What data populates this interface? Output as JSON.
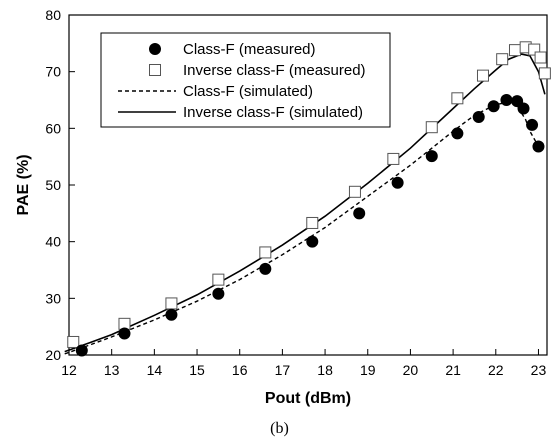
{
  "caption": "(b)",
  "chart_data": {
    "type": "line",
    "xlabel": "Pout (dBm)",
    "ylabel": "PAE (%)",
    "xlim": [
      12,
      23.2
    ],
    "ylim": [
      20,
      80
    ],
    "x_ticks": [
      12,
      13,
      14,
      15,
      16,
      17,
      18,
      19,
      20,
      21,
      22,
      23
    ],
    "y_ticks": [
      20,
      30,
      40,
      50,
      60,
      70,
      80
    ],
    "grid": false,
    "legend_position": "top-left",
    "series": [
      {
        "name": "Class-F (measured)",
        "style": "filled-circle",
        "color": "#000000",
        "x": [
          12.3,
          13.3,
          14.4,
          15.5,
          16.6,
          17.7,
          18.8,
          19.7,
          20.5,
          21.1,
          21.6,
          21.95,
          22.25,
          22.5,
          22.65,
          22.85,
          23.0
        ],
        "y": [
          20.8,
          23.8,
          27.1,
          30.8,
          35.2,
          40.0,
          45.0,
          50.4,
          55.1,
          59.1,
          62.0,
          63.9,
          65.0,
          64.8,
          63.5,
          60.6,
          56.8
        ]
      },
      {
        "name": "Inverse class-F (measured)",
        "style": "open-square",
        "color": "#000000",
        "x": [
          12.1,
          13.3,
          14.4,
          15.5,
          16.6,
          17.7,
          18.7,
          19.6,
          20.5,
          21.1,
          21.7,
          22.15,
          22.45,
          22.7,
          22.9,
          23.05,
          23.15
        ],
        "y": [
          22.3,
          25.5,
          29.1,
          33.3,
          38.1,
          43.3,
          48.8,
          54.6,
          60.2,
          65.3,
          69.3,
          72.2,
          73.8,
          74.3,
          73.9,
          72.5,
          69.7
        ]
      },
      {
        "name": "Class-F (simulated)",
        "style": "dashed-line",
        "color": "#000000",
        "x": [
          11.9,
          12.5,
          13.0,
          14.0,
          15.0,
          16.0,
          17.0,
          18.0,
          19.0,
          20.0,
          20.5,
          21.0,
          21.5,
          22.0,
          22.3,
          22.5,
          22.7,
          22.8,
          23.0
        ],
        "y": [
          20.2,
          21.8,
          23.2,
          26.2,
          29.5,
          33.3,
          37.7,
          42.5,
          48.0,
          53.5,
          56.5,
          59.5,
          62.3,
          64.2,
          64.6,
          64.0,
          61.5,
          59.5,
          56.8
        ]
      },
      {
        "name": "Inverse class-F (simulated)",
        "style": "solid-line",
        "color": "#000000",
        "x": [
          11.9,
          12.5,
          13.0,
          14.0,
          15.0,
          16.0,
          17.0,
          18.0,
          19.0,
          20.0,
          21.0,
          21.5,
          22.0,
          22.3,
          22.6,
          22.8,
          23.0,
          23.15
        ],
        "y": [
          20.6,
          22.2,
          23.6,
          27.0,
          30.6,
          34.8,
          39.4,
          44.5,
          50.3,
          56.5,
          63.5,
          67.0,
          70.3,
          72.2,
          73.1,
          72.8,
          70.0,
          66.0
        ]
      }
    ]
  }
}
